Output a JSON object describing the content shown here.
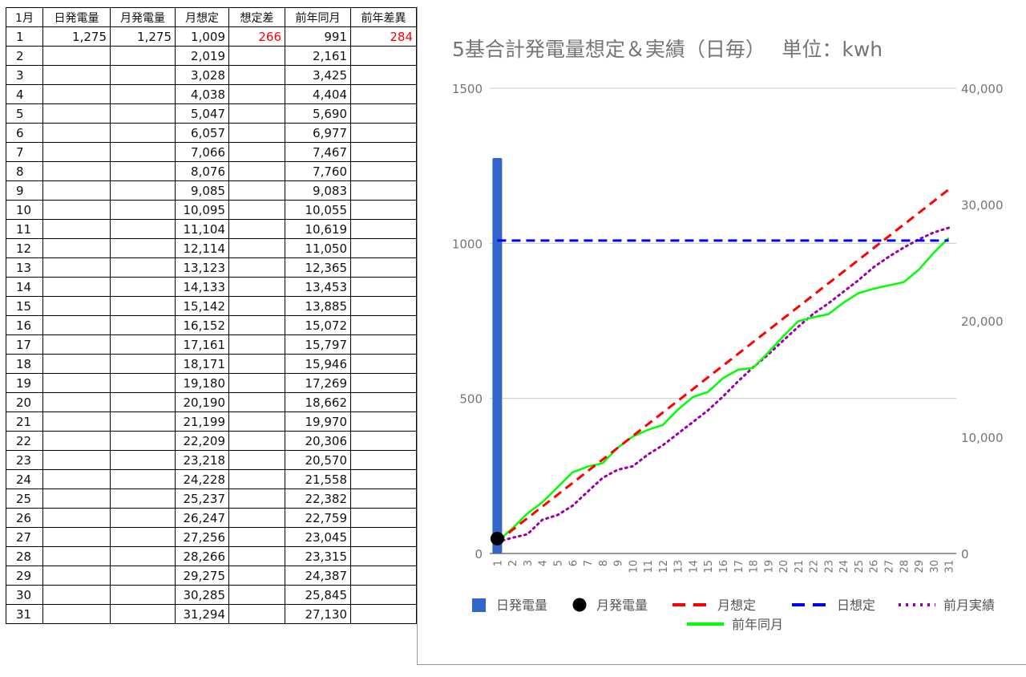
{
  "sheet": {
    "headers": [
      "1月",
      "日発電量",
      "月発電量",
      "月想定",
      "想定差",
      "前年同月",
      "前年差異"
    ],
    "rows": [
      {
        "day": "1",
        "daily": "1,275",
        "monthly": "1,275",
        "plan": "1,009",
        "plan_diff": "266",
        "prev_year": "991",
        "prev_diff": "284"
      },
      {
        "day": "2",
        "daily": "",
        "monthly": "",
        "plan": "2,019",
        "plan_diff": "",
        "prev_year": "2,161",
        "prev_diff": ""
      },
      {
        "day": "3",
        "daily": "",
        "monthly": "",
        "plan": "3,028",
        "plan_diff": "",
        "prev_year": "3,425",
        "prev_diff": ""
      },
      {
        "day": "4",
        "daily": "",
        "monthly": "",
        "plan": "4,038",
        "plan_diff": "",
        "prev_year": "4,404",
        "prev_diff": ""
      },
      {
        "day": "5",
        "daily": "",
        "monthly": "",
        "plan": "5,047",
        "plan_diff": "",
        "prev_year": "5,690",
        "prev_diff": ""
      },
      {
        "day": "6",
        "daily": "",
        "monthly": "",
        "plan": "6,057",
        "plan_diff": "",
        "prev_year": "6,977",
        "prev_diff": ""
      },
      {
        "day": "7",
        "daily": "",
        "monthly": "",
        "plan": "7,066",
        "plan_diff": "",
        "prev_year": "7,467",
        "prev_diff": ""
      },
      {
        "day": "8",
        "daily": "",
        "monthly": "",
        "plan": "8,076",
        "plan_diff": "",
        "prev_year": "7,760",
        "prev_diff": ""
      },
      {
        "day": "9",
        "daily": "",
        "monthly": "",
        "plan": "9,085",
        "plan_diff": "",
        "prev_year": "9,083",
        "prev_diff": ""
      },
      {
        "day": "10",
        "daily": "",
        "monthly": "",
        "plan": "10,095",
        "plan_diff": "",
        "prev_year": "10,055",
        "prev_diff": ""
      },
      {
        "day": "11",
        "daily": "",
        "monthly": "",
        "plan": "11,104",
        "plan_diff": "",
        "prev_year": "10,619",
        "prev_diff": ""
      },
      {
        "day": "12",
        "daily": "",
        "monthly": "",
        "plan": "12,114",
        "plan_diff": "",
        "prev_year": "11,050",
        "prev_diff": ""
      },
      {
        "day": "13",
        "daily": "",
        "monthly": "",
        "plan": "13,123",
        "plan_diff": "",
        "prev_year": "12,365",
        "prev_diff": ""
      },
      {
        "day": "14",
        "daily": "",
        "monthly": "",
        "plan": "14,133",
        "plan_diff": "",
        "prev_year": "13,453",
        "prev_diff": ""
      },
      {
        "day": "15",
        "daily": "",
        "monthly": "",
        "plan": "15,142",
        "plan_diff": "",
        "prev_year": "13,885",
        "prev_diff": ""
      },
      {
        "day": "16",
        "daily": "",
        "monthly": "",
        "plan": "16,152",
        "plan_diff": "",
        "prev_year": "15,072",
        "prev_diff": ""
      },
      {
        "day": "17",
        "daily": "",
        "monthly": "",
        "plan": "17,161",
        "plan_diff": "",
        "prev_year": "15,797",
        "prev_diff": ""
      },
      {
        "day": "18",
        "daily": "",
        "monthly": "",
        "plan": "18,171",
        "plan_diff": "",
        "prev_year": "15,946",
        "prev_diff": ""
      },
      {
        "day": "19",
        "daily": "",
        "monthly": "",
        "plan": "19,180",
        "plan_diff": "",
        "prev_year": "17,269",
        "prev_diff": ""
      },
      {
        "day": "20",
        "daily": "",
        "monthly": "",
        "plan": "20,190",
        "plan_diff": "",
        "prev_year": "18,662",
        "prev_diff": ""
      },
      {
        "day": "21",
        "daily": "",
        "monthly": "",
        "plan": "21,199",
        "plan_diff": "",
        "prev_year": "19,970",
        "prev_diff": ""
      },
      {
        "day": "22",
        "daily": "",
        "monthly": "",
        "plan": "22,209",
        "plan_diff": "",
        "prev_year": "20,306",
        "prev_diff": ""
      },
      {
        "day": "23",
        "daily": "",
        "monthly": "",
        "plan": "23,218",
        "plan_diff": "",
        "prev_year": "20,570",
        "prev_diff": ""
      },
      {
        "day": "24",
        "daily": "",
        "monthly": "",
        "plan": "24,228",
        "plan_diff": "",
        "prev_year": "21,558",
        "prev_diff": ""
      },
      {
        "day": "25",
        "daily": "",
        "monthly": "",
        "plan": "25,237",
        "plan_diff": "",
        "prev_year": "22,382",
        "prev_diff": ""
      },
      {
        "day": "26",
        "daily": "",
        "monthly": "",
        "plan": "26,247",
        "plan_diff": "",
        "prev_year": "22,759",
        "prev_diff": ""
      },
      {
        "day": "27",
        "daily": "",
        "monthly": "",
        "plan": "27,256",
        "plan_diff": "",
        "prev_year": "23,045",
        "prev_diff": ""
      },
      {
        "day": "28",
        "daily": "",
        "monthly": "",
        "plan": "28,266",
        "plan_diff": "",
        "prev_year": "23,315",
        "prev_diff": ""
      },
      {
        "day": "29",
        "daily": "",
        "monthly": "",
        "plan": "29,275",
        "plan_diff": "",
        "prev_year": "24,387",
        "prev_diff": ""
      },
      {
        "day": "30",
        "daily": "",
        "monthly": "",
        "plan": "30,285",
        "plan_diff": "",
        "prev_year": "25,845",
        "prev_diff": ""
      },
      {
        "day": "31",
        "daily": "",
        "monthly": "",
        "plan": "31,294",
        "plan_diff": "",
        "prev_year": "27,130",
        "prev_diff": ""
      }
    ]
  },
  "chart_data": {
    "type": "bar",
    "title": "5基合計発電量想定＆実績（日毎）　 単位：kwh",
    "xlabel": "",
    "ylabel": "",
    "x": [
      "1",
      "2",
      "3",
      "4",
      "5",
      "6",
      "7",
      "8",
      "9",
      "10",
      "11",
      "12",
      "13",
      "14",
      "15",
      "16",
      "17",
      "18",
      "19",
      "20",
      "21",
      "22",
      "23",
      "24",
      "25",
      "26",
      "27",
      "28",
      "29",
      "30",
      "31"
    ],
    "left_axis": {
      "ylim": [
        0,
        1500
      ],
      "ticks": [
        0,
        500,
        1000,
        1500
      ],
      "tick_labels": [
        "0",
        "500",
        "1000",
        "1500"
      ]
    },
    "right_axis": {
      "ylim": [
        0,
        40000
      ],
      "ticks": [
        0,
        10000,
        20000,
        30000,
        40000
      ],
      "tick_labels": [
        "0",
        "10,000",
        "20,000",
        "30,000",
        "40,000"
      ]
    },
    "grid": true,
    "legend_position": "bottom",
    "series": [
      {
        "name": "日発電量",
        "kind": "bar",
        "axis": "left",
        "color": "#3366cc",
        "values": [
          1275,
          null,
          null,
          null,
          null,
          null,
          null,
          null,
          null,
          null,
          null,
          null,
          null,
          null,
          null,
          null,
          null,
          null,
          null,
          null,
          null,
          null,
          null,
          null,
          null,
          null,
          null,
          null,
          null,
          null,
          null
        ]
      },
      {
        "name": "月発電量",
        "kind": "point",
        "axis": "right",
        "color": "#000000",
        "values": [
          1275,
          null,
          null,
          null,
          null,
          null,
          null,
          null,
          null,
          null,
          null,
          null,
          null,
          null,
          null,
          null,
          null,
          null,
          null,
          null,
          null,
          null,
          null,
          null,
          null,
          null,
          null,
          null,
          null,
          null,
          null
        ]
      },
      {
        "name": "月想定",
        "kind": "line",
        "dash": "dashed",
        "axis": "right",
        "color": "#ff0000",
        "values": [
          1009,
          2019,
          3028,
          4038,
          5047,
          6057,
          7066,
          8076,
          9085,
          10095,
          11104,
          12114,
          13123,
          14133,
          15142,
          16152,
          17161,
          18171,
          19180,
          20190,
          21199,
          22209,
          23218,
          24228,
          25237,
          26247,
          27256,
          28266,
          29275,
          30285,
          31294
        ]
      },
      {
        "name": "日想定",
        "kind": "line",
        "dash": "dashed",
        "axis": "left",
        "color": "#0000ff",
        "values": [
          1009,
          1009,
          1009,
          1009,
          1009,
          1009,
          1009,
          1009,
          1009,
          1009,
          1009,
          1009,
          1009,
          1009,
          1009,
          1009,
          1009,
          1009,
          1009,
          1009,
          1009,
          1009,
          1009,
          1009,
          1009,
          1009,
          1009,
          1009,
          1009,
          1009,
          1009
        ]
      },
      {
        "name": "前月実績",
        "kind": "line",
        "dash": "dotted",
        "axis": "right",
        "color": "#9900aa",
        "values": [
          1000,
          1350,
          1650,
          2900,
          3300,
          4100,
          5300,
          6500,
          7200,
          7500,
          8500,
          9300,
          10300,
          11300,
          12300,
          13500,
          14800,
          16000,
          17100,
          18300,
          19500,
          20600,
          21500,
          22500,
          23500,
          24600,
          25500,
          26300,
          27000,
          27600,
          28000
        ]
      },
      {
        "name": "前年同月",
        "kind": "line",
        "dash": "solid",
        "axis": "right",
        "color": "#00ff00",
        "values": [
          991,
          2161,
          3425,
          4404,
          5690,
          6977,
          7467,
          7760,
          9083,
          10055,
          10619,
          11050,
          12365,
          13453,
          13885,
          15072,
          15797,
          15946,
          17269,
          18662,
          19970,
          20306,
          20570,
          21558,
          22382,
          22759,
          23045,
          23315,
          24387,
          25845,
          27130
        ]
      }
    ]
  }
}
